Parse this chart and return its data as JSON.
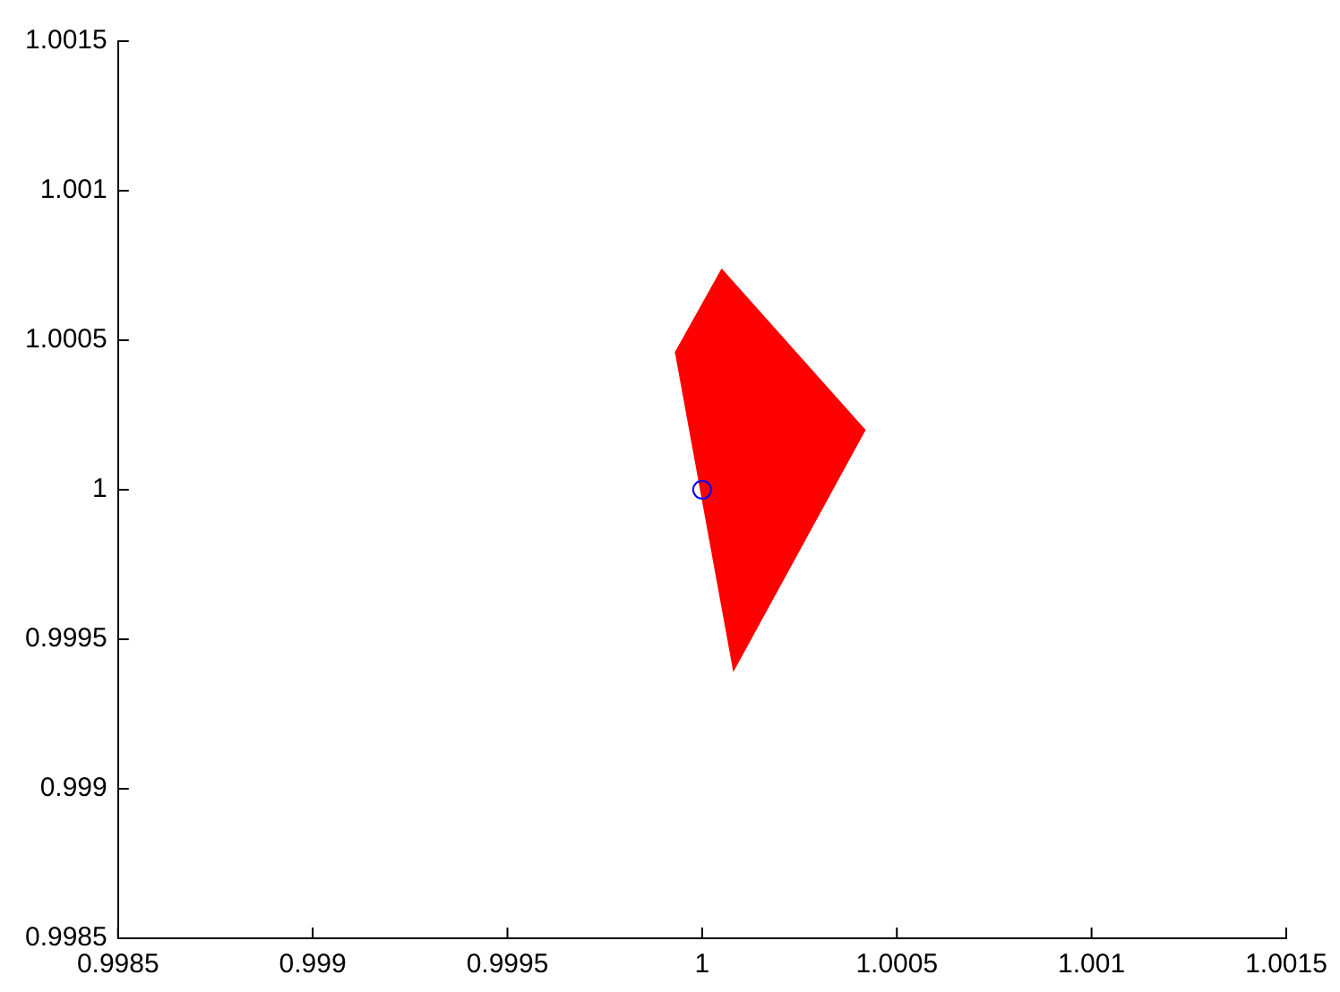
{
  "chart_data": {
    "type": "scatter",
    "series": [
      {
        "type": "area",
        "color": "#ff0000",
        "x": [
          0.99993,
          1.00005,
          1.00042,
          1.00008
        ],
        "values": [
          1.00046,
          1.00074,
          1.0002,
          0.99939
        ]
      },
      {
        "type": "scatter",
        "color": "#0000ff",
        "marker": "circle",
        "x": [
          1
        ],
        "values": [
          1
        ]
      }
    ],
    "xlim": [
      0.9985,
      1.0015
    ],
    "xticks": [
      0.9985,
      0.999,
      0.9995,
      1,
      1.0005,
      1.001,
      1.0015
    ],
    "ylim": [
      0.9985,
      1.0015
    ],
    "yticks": [
      0.9985,
      0.999,
      0.9995,
      1,
      1.0005,
      1.001,
      1.0015
    ],
    "grid": false,
    "legend": false
  }
}
